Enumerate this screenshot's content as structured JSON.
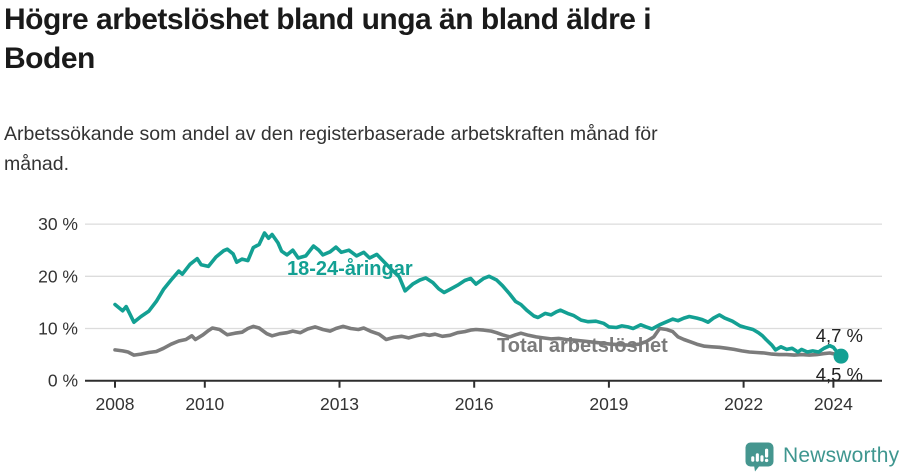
{
  "title": {
    "line1": "Högre arbetslöshet bland unga än bland äldre i",
    "line2": "Boden"
  },
  "subtitle": {
    "line1": "Arbetssökande som andel av den registerbaserade arbetskraften månad för",
    "line2": "månad."
  },
  "footer": {
    "brand": "Newsworthy",
    "logo_icon": "newsworthy-speech-bubble-bar-chart-icon"
  },
  "colors": {
    "youth_line": "#13a093",
    "total_line": "#7c7c7c",
    "gridline": "#dcdcdc",
    "axis": "#2e2e2e",
    "axis_text": "#333333",
    "end_label_text": "#222222",
    "brand_teal": "#3e968f",
    "title_text": "#1a1a1a"
  },
  "chart_data": {
    "type": "line",
    "title": "Högre arbetslöshet bland unga än bland äldre i Boden",
    "subtitle": "Arbetssökande som andel av den registerbaserade arbetskraften månad för månad.",
    "grid": true,
    "legend_position": "inline-labels",
    "x_axis": {
      "ticks": [
        2008,
        2010,
        2013,
        2016,
        2019,
        2022,
        2024
      ],
      "tick_labels": [
        "2008",
        "2010",
        "2013",
        "2016",
        "2019",
        "2022",
        "2024"
      ],
      "range": [
        2007.33,
        2025.08
      ]
    },
    "y_axis": {
      "unit": "%",
      "ticks": [
        0,
        10,
        20,
        30
      ],
      "tick_labels": [
        "0 %",
        "10 %",
        "20 %",
        "30 %"
      ],
      "range": [
        0,
        30
      ]
    },
    "series": [
      {
        "name": "18-24-åringar",
        "color": "#13a093",
        "end_label": "4,7 %",
        "end_value": 4.7,
        "end_dot": true,
        "points": [
          [
            2008.0,
            14.6
          ],
          [
            2008.17,
            13.4
          ],
          [
            2008.25,
            14.2
          ],
          [
            2008.42,
            11.2
          ],
          [
            2008.58,
            12.3
          ],
          [
            2008.75,
            13.3
          ],
          [
            2008.92,
            15.2
          ],
          [
            2009.08,
            17.5
          ],
          [
            2009.25,
            19.3
          ],
          [
            2009.42,
            21.0
          ],
          [
            2009.5,
            20.4
          ],
          [
            2009.67,
            22.3
          ],
          [
            2009.83,
            23.4
          ],
          [
            2009.92,
            22.2
          ],
          [
            2010.08,
            21.9
          ],
          [
            2010.25,
            23.7
          ],
          [
            2010.42,
            24.9
          ],
          [
            2010.5,
            25.2
          ],
          [
            2010.63,
            24.3
          ],
          [
            2010.71,
            22.7
          ],
          [
            2010.83,
            23.3
          ],
          [
            2010.96,
            23.0
          ],
          [
            2011.08,
            25.5
          ],
          [
            2011.21,
            26.1
          ],
          [
            2011.33,
            28.3
          ],
          [
            2011.42,
            27.3
          ],
          [
            2011.5,
            28.0
          ],
          [
            2011.63,
            26.4
          ],
          [
            2011.71,
            24.8
          ],
          [
            2011.83,
            24.1
          ],
          [
            2011.96,
            25.0
          ],
          [
            2012.08,
            23.5
          ],
          [
            2012.25,
            23.9
          ],
          [
            2012.42,
            25.8
          ],
          [
            2012.54,
            25.0
          ],
          [
            2012.63,
            24.1
          ],
          [
            2012.79,
            24.7
          ],
          [
            2012.92,
            25.6
          ],
          [
            2013.04,
            24.6
          ],
          [
            2013.21,
            25.0
          ],
          [
            2013.38,
            23.9
          ],
          [
            2013.54,
            24.6
          ],
          [
            2013.67,
            23.5
          ],
          [
            2013.83,
            24.2
          ],
          [
            2014.0,
            22.7
          ],
          [
            2014.17,
            21.2
          ],
          [
            2014.33,
            19.9
          ],
          [
            2014.46,
            17.2
          ],
          [
            2014.63,
            18.5
          ],
          [
            2014.79,
            19.3
          ],
          [
            2014.92,
            19.7
          ],
          [
            2015.08,
            18.8
          ],
          [
            2015.21,
            17.6
          ],
          [
            2015.33,
            16.9
          ],
          [
            2015.46,
            17.5
          ],
          [
            2015.63,
            18.3
          ],
          [
            2015.79,
            19.2
          ],
          [
            2015.92,
            19.6
          ],
          [
            2016.04,
            18.5
          ],
          [
            2016.21,
            19.6
          ],
          [
            2016.33,
            20.0
          ],
          [
            2016.5,
            19.3
          ],
          [
            2016.63,
            18.2
          ],
          [
            2016.79,
            16.6
          ],
          [
            2016.92,
            15.2
          ],
          [
            2017.04,
            14.6
          ],
          [
            2017.17,
            13.5
          ],
          [
            2017.33,
            12.4
          ],
          [
            2017.42,
            12.1
          ],
          [
            2017.58,
            12.9
          ],
          [
            2017.71,
            12.6
          ],
          [
            2017.83,
            13.2
          ],
          [
            2017.92,
            13.5
          ],
          [
            2018.08,
            12.9
          ],
          [
            2018.21,
            12.5
          ],
          [
            2018.38,
            11.6
          ],
          [
            2018.54,
            11.3
          ],
          [
            2018.71,
            11.4
          ],
          [
            2018.88,
            11.0
          ],
          [
            2019.0,
            10.3
          ],
          [
            2019.17,
            10.2
          ],
          [
            2019.29,
            10.5
          ],
          [
            2019.42,
            10.3
          ],
          [
            2019.54,
            10.0
          ],
          [
            2019.71,
            10.7
          ],
          [
            2019.83,
            10.3
          ],
          [
            2019.96,
            9.9
          ],
          [
            2020.13,
            10.7
          ],
          [
            2020.29,
            11.3
          ],
          [
            2020.42,
            11.8
          ],
          [
            2020.54,
            11.5
          ],
          [
            2020.67,
            12.0
          ],
          [
            2020.79,
            12.3
          ],
          [
            2020.96,
            12.0
          ],
          [
            2021.08,
            11.7
          ],
          [
            2021.21,
            11.2
          ],
          [
            2021.33,
            12.0
          ],
          [
            2021.46,
            12.6
          ],
          [
            2021.58,
            12.0
          ],
          [
            2021.75,
            11.4
          ],
          [
            2021.92,
            10.5
          ],
          [
            2022.04,
            10.2
          ],
          [
            2022.21,
            9.8
          ],
          [
            2022.33,
            9.2
          ],
          [
            2022.42,
            8.6
          ],
          [
            2022.5,
            7.9
          ],
          [
            2022.63,
            6.8
          ],
          [
            2022.71,
            5.9
          ],
          [
            2022.83,
            6.5
          ],
          [
            2022.96,
            6.0
          ],
          [
            2023.08,
            6.2
          ],
          [
            2023.21,
            5.5
          ],
          [
            2023.29,
            6.0
          ],
          [
            2023.42,
            5.5
          ],
          [
            2023.54,
            5.7
          ],
          [
            2023.67,
            5.5
          ],
          [
            2023.79,
            6.2
          ],
          [
            2023.92,
            6.7
          ],
          [
            2024.0,
            6.4
          ],
          [
            2024.08,
            5.5
          ],
          [
            2024.17,
            4.7
          ]
        ]
      },
      {
        "name": "Total arbetslöshet",
        "color": "#7c7c7c",
        "end_label": "4,5 %",
        "end_value": 4.5,
        "end_dot": false,
        "points": [
          [
            2008.0,
            5.9
          ],
          [
            2008.17,
            5.7
          ],
          [
            2008.29,
            5.5
          ],
          [
            2008.42,
            4.9
          ],
          [
            2008.58,
            5.1
          ],
          [
            2008.75,
            5.4
          ],
          [
            2008.92,
            5.6
          ],
          [
            2009.08,
            6.2
          ],
          [
            2009.25,
            7.0
          ],
          [
            2009.42,
            7.6
          ],
          [
            2009.58,
            7.9
          ],
          [
            2009.71,
            8.6
          ],
          [
            2009.79,
            7.9
          ],
          [
            2009.96,
            8.8
          ],
          [
            2010.08,
            9.6
          ],
          [
            2010.17,
            10.1
          ],
          [
            2010.33,
            9.8
          ],
          [
            2010.5,
            8.8
          ],
          [
            2010.67,
            9.1
          ],
          [
            2010.83,
            9.3
          ],
          [
            2010.96,
            10.0
          ],
          [
            2011.08,
            10.4
          ],
          [
            2011.21,
            10.1
          ],
          [
            2011.38,
            9.0
          ],
          [
            2011.5,
            8.6
          ],
          [
            2011.67,
            9.0
          ],
          [
            2011.83,
            9.2
          ],
          [
            2011.96,
            9.5
          ],
          [
            2012.13,
            9.2
          ],
          [
            2012.29,
            9.9
          ],
          [
            2012.46,
            10.3
          ],
          [
            2012.63,
            9.8
          ],
          [
            2012.79,
            9.5
          ],
          [
            2012.92,
            10.0
          ],
          [
            2013.08,
            10.4
          ],
          [
            2013.25,
            10.0
          ],
          [
            2013.42,
            9.8
          ],
          [
            2013.54,
            10.1
          ],
          [
            2013.71,
            9.4
          ],
          [
            2013.88,
            8.9
          ],
          [
            2014.04,
            7.9
          ],
          [
            2014.21,
            8.3
          ],
          [
            2014.38,
            8.5
          ],
          [
            2014.54,
            8.2
          ],
          [
            2014.71,
            8.6
          ],
          [
            2014.88,
            8.9
          ],
          [
            2015.0,
            8.7
          ],
          [
            2015.13,
            8.9
          ],
          [
            2015.29,
            8.5
          ],
          [
            2015.46,
            8.7
          ],
          [
            2015.63,
            9.2
          ],
          [
            2015.79,
            9.4
          ],
          [
            2015.92,
            9.7
          ],
          [
            2016.04,
            9.8
          ],
          [
            2016.21,
            9.7
          ],
          [
            2016.38,
            9.5
          ],
          [
            2016.5,
            9.2
          ],
          [
            2016.63,
            8.8
          ],
          [
            2016.79,
            8.4
          ],
          [
            2016.92,
            8.8
          ],
          [
            2017.04,
            9.1
          ],
          [
            2017.21,
            8.7
          ],
          [
            2017.38,
            8.4
          ],
          [
            2017.54,
            8.2
          ],
          [
            2017.71,
            8.0
          ],
          [
            2017.88,
            8.1
          ],
          [
            2018.04,
            7.9
          ],
          [
            2018.21,
            7.8
          ],
          [
            2018.42,
            7.6
          ],
          [
            2018.63,
            7.4
          ],
          [
            2018.83,
            7.2
          ],
          [
            2019.04,
            7.0
          ],
          [
            2019.25,
            6.9
          ],
          [
            2019.46,
            6.8
          ],
          [
            2019.67,
            7.0
          ],
          [
            2019.83,
            7.5
          ],
          [
            2020.0,
            8.4
          ],
          [
            2020.13,
            10.0
          ],
          [
            2020.29,
            9.8
          ],
          [
            2020.42,
            9.4
          ],
          [
            2020.54,
            8.4
          ],
          [
            2020.67,
            7.9
          ],
          [
            2020.83,
            7.4
          ],
          [
            2020.96,
            7.0
          ],
          [
            2021.13,
            6.6
          ],
          [
            2021.29,
            6.5
          ],
          [
            2021.46,
            6.4
          ],
          [
            2021.63,
            6.2
          ],
          [
            2021.79,
            6.0
          ],
          [
            2021.96,
            5.7
          ],
          [
            2022.13,
            5.5
          ],
          [
            2022.29,
            5.4
          ],
          [
            2022.46,
            5.3
          ],
          [
            2022.63,
            5.1
          ],
          [
            2022.79,
            5.0
          ],
          [
            2022.96,
            5.0
          ],
          [
            2023.13,
            4.9
          ],
          [
            2023.29,
            5.0
          ],
          [
            2023.46,
            4.9
          ],
          [
            2023.63,
            5.0
          ],
          [
            2023.79,
            5.2
          ],
          [
            2023.92,
            5.3
          ],
          [
            2024.04,
            5.1
          ],
          [
            2024.17,
            4.5
          ]
        ]
      }
    ]
  }
}
